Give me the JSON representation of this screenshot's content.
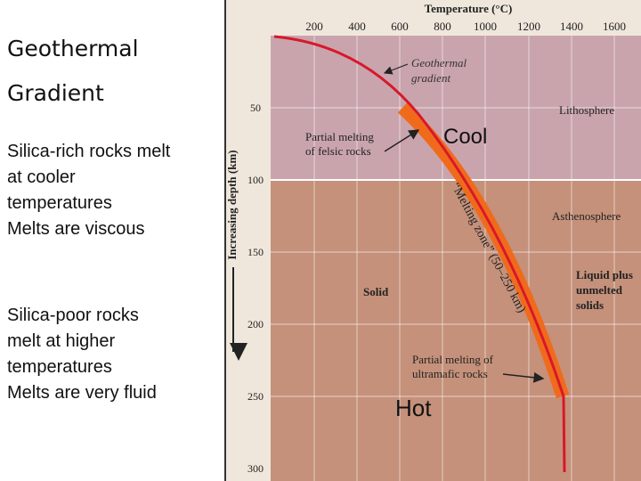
{
  "slide": {
    "title_line1": "Geothermal",
    "title_line2": "Gradient",
    "felsic_note": [
      "Silica-rich rocks melt",
      "at cooler",
      "temperatures",
      "Melts are viscous"
    ],
    "mafic_note": [
      "Silica-poor rocks",
      "melt at higher",
      "temperatures",
      "Melts are very fluid"
    ]
  },
  "diagram": {
    "temperature_axis_title": "Temperature (°C)",
    "temperature_ticks": [
      "200",
      "400",
      "600",
      "800",
      "1000",
      "1200",
      "1400",
      "1600"
    ],
    "depth_axis_title": "Increasing depth (km)",
    "depth_ticks": [
      "50",
      "100",
      "150",
      "200",
      "250",
      "300"
    ],
    "labels": {
      "geothermal_gradient": [
        "Geothermal",
        "gradient"
      ],
      "lithosphere": "Lithosphere",
      "asthenosphere": "Asthenosphere",
      "partial_melting_felsic": [
        "Partial melting",
        "of felsic rocks"
      ],
      "melting_zone": "“Melting zone” (50–250 km)",
      "solid": "Solid",
      "liquid_plus_unmelted": [
        "Liquid plus",
        "unmelted",
        "solids"
      ],
      "partial_melting_ultramafic": [
        "Partial melting of",
        "ultramafic rocks"
      ]
    },
    "annotations": {
      "cool": "Cool",
      "hot": "Hot"
    },
    "colors": {
      "lithosphere": "#c9a4ad",
      "asthenosphere": "#c5917a",
      "gradient_line": "#d8182a",
      "melting_zone": "#f06a1c"
    }
  }
}
